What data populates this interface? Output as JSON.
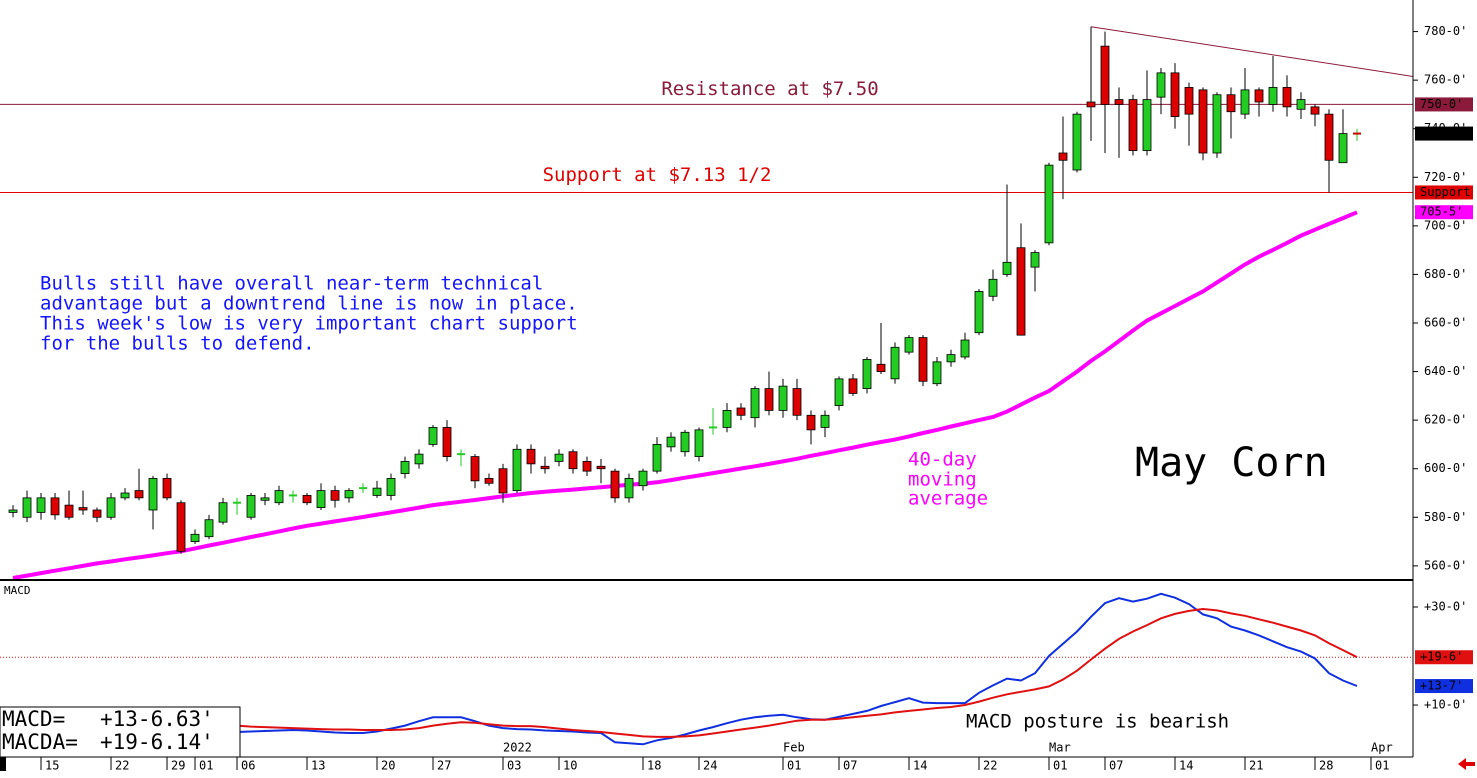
{
  "chart_data": [
    {
      "type": "candlestick",
      "title": "May Corn",
      "x": [
        0,
        1,
        2,
        3,
        4,
        5,
        6,
        7,
        8,
        9,
        10,
        11,
        12,
        13,
        14,
        15,
        16,
        17,
        18,
        19,
        20,
        21,
        22,
        23,
        24,
        25,
        26,
        27,
        28,
        29,
        30,
        31,
        32,
        33,
        34,
        35,
        36,
        37,
        38,
        39,
        40,
        41,
        42,
        43,
        44,
        45,
        46,
        47,
        48,
        49,
        50,
        51,
        52,
        53,
        54,
        55,
        56,
        57,
        58,
        59,
        60,
        61,
        62,
        63,
        64,
        65,
        66,
        67,
        68,
        69,
        70,
        71,
        72,
        73,
        74,
        75,
        76,
        77,
        78,
        79,
        80,
        81,
        82,
        83,
        84,
        85,
        86,
        87,
        88,
        89,
        90,
        91,
        92,
        93,
        94,
        95,
        96
      ],
      "open": [
        582,
        580,
        582,
        588,
        585,
        584,
        583,
        580,
        588,
        591,
        583,
        596,
        586,
        570,
        572,
        578,
        586,
        580,
        587,
        586,
        589,
        589,
        584,
        591,
        588,
        592,
        589,
        589,
        598,
        602,
        610,
        617,
        606,
        605,
        596,
        600,
        591,
        608,
        601,
        603,
        607,
        603,
        601,
        599,
        588,
        593,
        599,
        609,
        607,
        605,
        617,
        617,
        625,
        621,
        633,
        624,
        633,
        622,
        617,
        626,
        637,
        633,
        643,
        637,
        648,
        654,
        635,
        644,
        646,
        656,
        671,
        680,
        691,
        683,
        693,
        730,
        723,
        751,
        774,
        752,
        752,
        731,
        753,
        763,
        757,
        756,
        730,
        754,
        746,
        756,
        750,
        757,
        748,
        749,
        746,
        726,
        738
      ],
      "high": [
        585,
        591,
        590,
        590,
        591,
        591,
        584,
        590,
        592,
        600,
        597,
        598,
        587,
        575,
        581,
        588,
        588,
        590,
        590,
        593,
        591,
        590,
        594,
        593,
        592,
        594,
        595,
        598,
        605,
        608,
        618,
        620,
        608,
        606,
        598,
        602,
        610,
        610,
        605,
        608,
        608,
        605,
        604,
        600,
        598,
        600,
        613,
        615,
        616,
        617,
        625,
        627,
        627,
        634,
        640,
        637,
        637,
        624,
        624,
        638,
        639,
        646,
        660,
        652,
        655,
        655,
        646,
        649,
        656,
        674,
        682,
        717,
        701,
        690,
        726,
        745,
        747,
        782,
        780,
        757,
        754,
        764,
        765,
        767,
        759,
        757,
        755,
        757,
        765,
        757,
        770,
        762,
        755,
        750,
        748,
        748,
        740
      ],
      "low": [
        580,
        578,
        579,
        579,
        579,
        581,
        578,
        579,
        587,
        587,
        575,
        587,
        565,
        569,
        571,
        577,
        581,
        579,
        585,
        585,
        586,
        585,
        583,
        584,
        586,
        590,
        588,
        587,
        596,
        600,
        609,
        603,
        601,
        592,
        593,
        586,
        590,
        598,
        598,
        601,
        598,
        597,
        594,
        586,
        586,
        591,
        598,
        607,
        605,
        603,
        614,
        615,
        620,
        617,
        622,
        621,
        620,
        610,
        613,
        624,
        630,
        631,
        639,
        635,
        647,
        634,
        634,
        642,
        645,
        655,
        669,
        679,
        655,
        673,
        692,
        711,
        722,
        735,
        730,
        728,
        729,
        729,
        746,
        740,
        733,
        727,
        728,
        736,
        744,
        745,
        747,
        745,
        744,
        741,
        713.75,
        727,
        735
      ],
      "close": [
        583,
        588,
        588,
        581,
        580,
        583,
        580,
        588,
        590,
        588,
        596,
        588,
        566,
        573,
        579,
        586,
        586,
        589,
        588,
        591,
        589,
        586,
        591,
        587,
        591,
        592,
        592,
        596,
        603,
        606,
        617,
        605,
        606,
        595,
        594,
        590,
        608,
        602,
        600,
        606,
        600,
        599,
        600,
        588,
        596,
        599,
        610,
        613,
        615,
        616,
        617,
        624,
        622,
        633,
        624,
        634,
        622,
        616,
        622,
        637,
        631,
        645,
        640,
        650,
        654,
        636,
        644,
        647,
        653,
        673,
        678,
        685,
        655,
        689,
        725,
        727,
        746,
        749,
        750,
        750,
        731,
        752,
        763,
        745,
        746,
        730,
        754,
        747,
        756,
        751,
        757,
        749,
        752,
        746,
        727,
        738,
        738
      ],
      "up_color": "#22cc22",
      "down_color": "#dd0000",
      "ma": {
        "label": [
          "40-day",
          "moving",
          "average"
        ],
        "color": "#ff00ff",
        "values": [
          555,
          556,
          557,
          558,
          559,
          560,
          561,
          561.8,
          562.7,
          563.5,
          564.3,
          565.2,
          566,
          567.2,
          568.4,
          569.5,
          570.7,
          571.9,
          573,
          574.2,
          575.4,
          576.5,
          577.4,
          578.3,
          579.2,
          580.1,
          581.1,
          582,
          583,
          584,
          585,
          585.7,
          586.4,
          587.1,
          587.9,
          588.6,
          589.3,
          590,
          590.5,
          591,
          591.4,
          591.9,
          592.4,
          592.9,
          593.4,
          593.8,
          594.4,
          595.3,
          596.3,
          597.2,
          598.2,
          599.1,
          600.1,
          601,
          602,
          603,
          604.1,
          605.3,
          606.4,
          607.6,
          608.7,
          609.9,
          611,
          612,
          613.3,
          614.7,
          616,
          617.4,
          618.7,
          620,
          621.3,
          623.5,
          626.4,
          629.3,
          632,
          636,
          640,
          644.4,
          648.3,
          652.6,
          656.9,
          661,
          664,
          667,
          670,
          673,
          676.7,
          680.4,
          684.1,
          687.3,
          690.1,
          693,
          696,
          698.4,
          700.8,
          703.2,
          705.6
        ],
        "last": {
          "value": 705.625,
          "label": "705-5'"
        }
      },
      "last_price": {
        "value": 738,
        "label": "738-0'"
      },
      "levels": [
        {
          "label": "Resistance at $7.50",
          "value": 750,
          "value_label": "750-0'",
          "color": "#8b1a3a"
        },
        {
          "label": "Support at $7.13 1/2",
          "value": 713.75,
          "value_label": "713-6'",
          "color": "#e00000"
        }
      ],
      "trendline": {
        "x": [
          77,
          100
        ],
        "values": [
          782,
          761.5
        ],
        "color": "#8b1a3a"
      },
      "note": [
        "Bulls still have overall near-term technical",
        "advantage but a downtrend line is now in place.",
        "This week's low is very important chart support",
        "for the bulls to defend."
      ],
      "xlim": [
        -0.93,
        100
      ],
      "ylim": [
        555,
        793
      ],
      "yticks": [
        {
          "value": 560,
          "label": "560-0'"
        },
        {
          "value": 580,
          "label": "580-0'"
        },
        {
          "value": 600,
          "label": "600-0'"
        },
        {
          "value": 620,
          "label": "620-0'"
        },
        {
          "value": 640,
          "label": "640-0'"
        },
        {
          "value": 660,
          "label": "660-0'"
        },
        {
          "value": 680,
          "label": "680-0'"
        },
        {
          "value": 700,
          "label": "700-0'"
        },
        {
          "value": 720,
          "label": "720-0'"
        },
        {
          "value": 740,
          "label": "740-0'"
        },
        {
          "value": 760,
          "label": "760-0'"
        },
        {
          "value": 780,
          "label": "780-0'"
        }
      ],
      "xticks": [
        {
          "value": 2,
          "label": "15"
        },
        {
          "value": 7,
          "label": "22"
        },
        {
          "value": 11,
          "label": "29"
        },
        {
          "value": 13,
          "label": "01"
        },
        {
          "value": 16,
          "label": "06"
        },
        {
          "value": 21,
          "label": "13"
        },
        {
          "value": 26,
          "label": "20"
        },
        {
          "value": 30,
          "label": "27"
        },
        {
          "value": 35,
          "label": "03"
        },
        {
          "value": 39,
          "label": "10"
        },
        {
          "value": 45,
          "label": "18"
        },
        {
          "value": 49,
          "label": "24"
        },
        {
          "value": 55,
          "label": "01"
        },
        {
          "value": 59,
          "label": "07"
        },
        {
          "value": 64,
          "label": "14"
        },
        {
          "value": 69,
          "label": "22"
        },
        {
          "value": 74,
          "label": "01"
        },
        {
          "value": 78,
          "label": "07"
        },
        {
          "value": 83,
          "label": "14"
        },
        {
          "value": 88,
          "label": "21"
        },
        {
          "value": 93,
          "label": "28"
        },
        {
          "value": 97,
          "label": "01"
        }
      ],
      "xticks_major": [
        {
          "value": 35,
          "label": "2022"
        },
        {
          "value": 55,
          "label": "Feb"
        },
        {
          "value": 74,
          "label": "Mar"
        },
        {
          "value": 97,
          "label": "Apr"
        }
      ]
    },
    {
      "type": "line",
      "title": "MACD",
      "annotation": "MACD posture is bearish",
      "x": [
        0,
        1,
        2,
        3,
        4,
        5,
        6,
        7,
        8,
        9,
        10,
        11,
        12,
        13,
        14,
        15,
        16,
        17,
        18,
        19,
        20,
        21,
        22,
        23,
        24,
        25,
        26,
        27,
        28,
        29,
        30,
        31,
        32,
        33,
        34,
        35,
        36,
        37,
        38,
        39,
        40,
        41,
        42,
        43,
        44,
        45,
        46,
        47,
        48,
        49,
        50,
        51,
        52,
        53,
        54,
        55,
        56,
        57,
        58,
        59,
        60,
        61,
        62,
        63,
        64,
        65,
        66,
        67,
        68,
        69,
        70,
        71,
        72,
        73,
        74,
        75,
        76,
        77,
        78,
        79,
        80,
        81,
        82,
        83,
        84,
        85,
        86,
        87,
        88,
        89,
        90,
        91,
        92,
        93,
        94,
        95,
        96
      ],
      "xlim": [
        -0.93,
        100
      ],
      "ylim": [
        -0.6,
        35.1
      ],
      "yticks": [
        {
          "value": 30,
          "label": "+30-0'"
        },
        {
          "value": 10,
          "label": "+10-0'"
        }
      ],
      "series": [
        {
          "name": "MACD=",
          "color": "#1030e0",
          "readout": {
            "value": 13.82875,
            "label": "+13-6.63'"
          },
          "last": {
            "value": 13.875,
            "label": "+13-7'"
          },
          "values": [
            6,
            6,
            6,
            6,
            5.8,
            5.6,
            5.4,
            5.3,
            5.2,
            5.2,
            5.3,
            5.4,
            5,
            4.8,
            4.6,
            4.5,
            4.5,
            4.6,
            4.7,
            4.8,
            4.9,
            4.8,
            4.6,
            4.4,
            4.3,
            4.3,
            4.6,
            5.2,
            5.8,
            6.7,
            7.5,
            7.5,
            7.5,
            6.7,
            5.8,
            5.3,
            5.1,
            5,
            4.8,
            4.7,
            4.6,
            4.4,
            4.3,
            2.4,
            2.2,
            2,
            2.8,
            3.3,
            4,
            4.8,
            5.5,
            6.3,
            7,
            7.5,
            7.8,
            8,
            7.5,
            7.1,
            7,
            7.6,
            8.2,
            8.8,
            9.8,
            10.6,
            11.4,
            10.5,
            10.4,
            10.4,
            10.4,
            12.5,
            14,
            15.4,
            15,
            16.5,
            20,
            22.5,
            25,
            28,
            30.8,
            31.8,
            31.1,
            31.7,
            32.7,
            31.9,
            30.6,
            28.5,
            27.7,
            26,
            25.2,
            24.2,
            23,
            21.8,
            20.9,
            19.5,
            16.5,
            15,
            13.875
          ]
        },
        {
          "name": "MACDA=",
          "color": "#e01010",
          "readout": {
            "value": 19.7675,
            "label": "+19-6.14'"
          },
          "last": {
            "value": 19.75,
            "label": "+19-6'"
          },
          "values": [
            6.6,
            6.6,
            6.6,
            6.5,
            6.5,
            6.4,
            6.3,
            6.2,
            6.1,
            6,
            6,
            5.9,
            5.9,
            5.9,
            5.9,
            5.9,
            5.8,
            5.6,
            5.5,
            5.4,
            5.3,
            5.2,
            5.1,
            5,
            5,
            4.9,
            4.9,
            4.9,
            5,
            5.3,
            5.8,
            6.2,
            6.5,
            6.4,
            6.1,
            5.8,
            5.7,
            5.7,
            5.5,
            5.2,
            4.9,
            4.7,
            4.5,
            4.2,
            3.9,
            3.6,
            3.5,
            3.5,
            3.6,
            3.8,
            4.2,
            4.6,
            5,
            5.4,
            5.8,
            6.3,
            6.8,
            7,
            7,
            7.2,
            7.5,
            7.8,
            8.1,
            8.5,
            8.8,
            9.1,
            9.4,
            9.6,
            10,
            10.7,
            11.5,
            12.2,
            12.7,
            13.2,
            13.8,
            15.2,
            17,
            19.3,
            21.5,
            23.5,
            25,
            26.3,
            27.7,
            28.6,
            29.2,
            29.6,
            29.3,
            28.7,
            28.2,
            27.5,
            26.8,
            26,
            25.2,
            24.2,
            22.6,
            21.2,
            19.75
          ]
        }
      ]
    }
  ]
}
